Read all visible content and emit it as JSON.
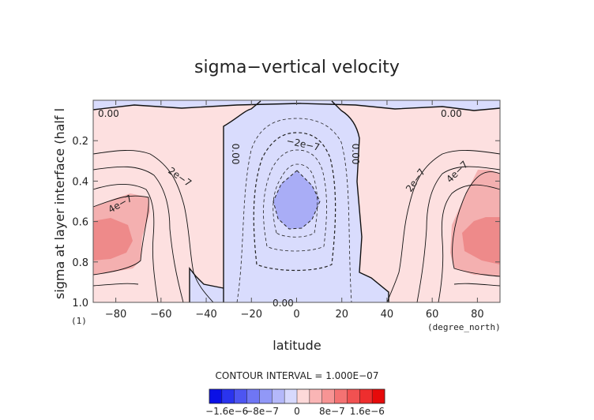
{
  "chart_data": {
    "type": "heatmap",
    "title": "sigma−vertical velocity",
    "xlabel": "latitude",
    "ylabel": "sigma at layer interface (half l",
    "x_unit": "(degree_north)",
    "y_unit": "(1)",
    "xlim": [
      -90,
      90
    ],
    "ylim": [
      1.0,
      0.0
    ],
    "x_ticks": [
      "−80",
      "−60",
      "−40",
      "−20",
      "0",
      "20",
      "40",
      "60",
      "80"
    ],
    "x_tick_values": [
      -80,
      -60,
      -40,
      -20,
      0,
      20,
      40,
      60,
      80
    ],
    "y_ticks": [
      "0.2",
      "0.4",
      "0.6",
      "0.8",
      "1.0"
    ],
    "y_tick_values": [
      0.2,
      0.4,
      0.6,
      0.8,
      1.0
    ],
    "contour_interval": "CONTOUR INTERVAL = 1.000E−07",
    "contour_labels": [
      "0.00",
      "0.00",
      "0.00",
      "0.00",
      "0.00",
      "−2e−7",
      "2e−7",
      "2e−7",
      "4e−7",
      "4e−7"
    ],
    "colorbar": {
      "labels": [
        "−1.6e−6",
        "−8e−7",
        "0",
        "8e−7",
        "1.6e−6"
      ],
      "label_values": [
        -1.6e-06,
        -8e-07,
        0,
        8e-07,
        1.6e-06
      ],
      "min": -2e-06,
      "max": 2e-06,
      "colors": [
        "#0a10e6",
        "#2a34ee",
        "#4d55f1",
        "#6f76f4",
        "#9198f7",
        "#b4b8fa",
        "#d7d9fd",
        "#fdd9d9",
        "#fab5b5",
        "#f79494",
        "#f47272",
        "#f15151",
        "#ee2e2e",
        "#e60a0a"
      ]
    },
    "field_description_values": {
      "neutral_positive": "#fde0e0",
      "neutral_negative": "#d9dcfd",
      "level_4e7": "#f4a4a4",
      "level_6e7": "#ee8a8a",
      "level_neg4e7": "#a9adf6"
    }
  }
}
